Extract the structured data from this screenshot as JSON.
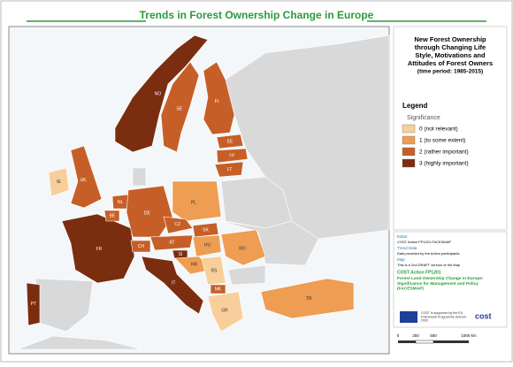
{
  "title": "Trends in Forest Ownership Change in Europe",
  "panel": {
    "heading": "New Forest Ownership through Changing Life Style, Motivations and Attitudes of Forest Owners",
    "period": "(time period: 1985-2015)"
  },
  "legend": {
    "title": "Legend",
    "subtitle": "Significance",
    "items": [
      {
        "label": "0 (not relevant)",
        "color": "#f8cf9a"
      },
      {
        "label": "1 (to some extent)",
        "color": "#ee9d52"
      },
      {
        "label": "2 (rather important)",
        "color": "#c65f27"
      },
      {
        "label": "3 (highly important)",
        "color": "#7b2d10"
      }
    ]
  },
  "info": [
    {
      "heading": "Editor",
      "text": "COST Action FP1201 FACESMAP"
    },
    {
      "heading": "Trend Data",
      "text": "Data provided by the Action participants"
    },
    {
      "heading": "Map",
      "text": "This is a 2nd DRAFT version of the Map"
    }
  ],
  "action": {
    "name": "COST Action FP1201",
    "project": "Forest Land Ownership Change in Europe: Significance for Management and Policy (FACESMAP)",
    "funding": "COST is supported by the EU Framework Programme Horizon 2020"
  },
  "scale": [
    "0",
    "250",
    "500",
    "1000 km"
  ],
  "countries": [
    {
      "code": "NO",
      "level": 3
    },
    {
      "code": "SE",
      "level": 2
    },
    {
      "code": "FI",
      "level": 2
    },
    {
      "code": "EE",
      "level": 2
    },
    {
      "code": "LV",
      "level": 2
    },
    {
      "code": "LT",
      "level": 2
    },
    {
      "code": "IE",
      "level": 0
    },
    {
      "code": "UK",
      "level": 2
    },
    {
      "code": "FR",
      "level": 3
    },
    {
      "code": "BE",
      "level": 2
    },
    {
      "code": "NL",
      "level": 2
    },
    {
      "code": "DE",
      "level": 2
    },
    {
      "code": "PL",
      "level": 1
    },
    {
      "code": "CZ",
      "level": 2
    },
    {
      "code": "SK",
      "level": 2
    },
    {
      "code": "AT",
      "level": 2
    },
    {
      "code": "CH",
      "level": 2
    },
    {
      "code": "HU",
      "level": 1
    },
    {
      "code": "SI",
      "level": 3
    },
    {
      "code": "HR",
      "level": 1
    },
    {
      "code": "RS",
      "level": 0
    },
    {
      "code": "RO",
      "level": 1
    },
    {
      "code": "MK",
      "level": 2
    },
    {
      "code": "GR",
      "level": 0
    },
    {
      "code": "TR",
      "level": 1
    },
    {
      "code": "IT",
      "level": 3
    },
    {
      "code": "PT",
      "level": 3
    }
  ]
}
